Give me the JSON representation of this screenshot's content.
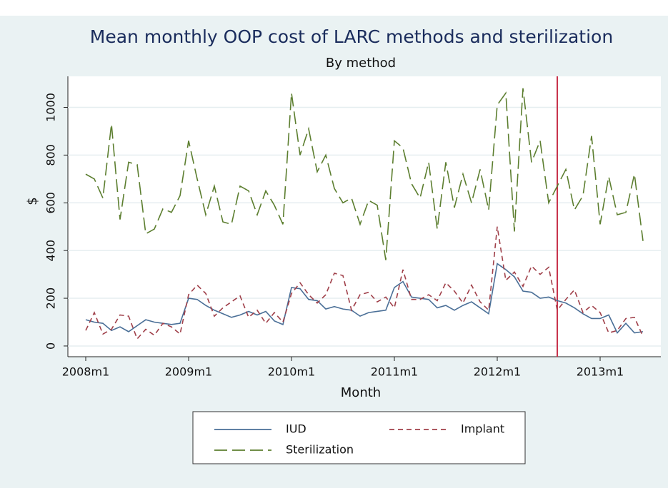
{
  "chart_data": {
    "type": "line",
    "title": "Mean monthly OOP cost of LARC methods and sterilization",
    "subtitle": "By method",
    "x_label": "Month",
    "y_label": "$",
    "categories": [
      "2008m1",
      null,
      null,
      null,
      null,
      null,
      null,
      null,
      null,
      null,
      null,
      null,
      "2009m1",
      null,
      null,
      null,
      null,
      null,
      null,
      null,
      null,
      null,
      null,
      null,
      "2010m1",
      null,
      null,
      null,
      null,
      null,
      null,
      null,
      null,
      null,
      null,
      null,
      "2011m1",
      null,
      null,
      null,
      null,
      null,
      null,
      null,
      null,
      null,
      null,
      null,
      "2012m1",
      null,
      null,
      null,
      null,
      null,
      null,
      null,
      null,
      null,
      null,
      null,
      "2013m1",
      null,
      null,
      null,
      null,
      null
    ],
    "series": [
      {
        "name": "IUD",
        "color": "#4a6f97",
        "dash": "none",
        "values": [
          110,
          100,
          95,
          65,
          80,
          60,
          85,
          110,
          100,
          95,
          90,
          95,
          200,
          195,
          170,
          150,
          135,
          120,
          130,
          145,
          130,
          145,
          105,
          90,
          245,
          240,
          195,
          190,
          155,
          165,
          155,
          150,
          125,
          140,
          145,
          150,
          245,
          270,
          205,
          200,
          195,
          160,
          170,
          150,
          170,
          185,
          160,
          135,
          345,
          320,
          290,
          230,
          225,
          200,
          205,
          190,
          180,
          160,
          135,
          115,
          115,
          130,
          55,
          95,
          55,
          60
        ]
      },
      {
        "name": "Implant",
        "color": "#a0404a",
        "dash": "7 5",
        "values": [
          65,
          140,
          50,
          70,
          130,
          125,
          30,
          70,
          45,
          95,
          80,
          50,
          215,
          255,
          220,
          125,
          160,
          185,
          210,
          120,
          150,
          95,
          140,
          100,
          220,
          265,
          215,
          180,
          215,
          305,
          295,
          150,
          215,
          225,
          185,
          205,
          160,
          320,
          195,
          195,
          215,
          190,
          265,
          230,
          180,
          255,
          185,
          150,
          500,
          275,
          310,
          250,
          335,
          300,
          330,
          150,
          195,
          235,
          140,
          170,
          140,
          55,
          65,
          115,
          120,
          40
        ]
      },
      {
        "name": "Sterilization",
        "color": "#5c7e2f",
        "dash": "18 7",
        "values": [
          720,
          700,
          620,
          930,
          530,
          770,
          760,
          470,
          490,
          575,
          560,
          630,
          860,
          700,
          550,
          670,
          520,
          510,
          670,
          650,
          550,
          650,
          590,
          510,
          1060,
          800,
          910,
          730,
          800,
          660,
          600,
          620,
          510,
          610,
          590,
          360,
          860,
          830,
          680,
          620,
          770,
          490,
          770,
          580,
          720,
          600,
          740,
          570,
          1010,
          1060,
          480,
          1080,
          770,
          860,
          600,
          670,
          740,
          570,
          630,
          880,
          510,
          710,
          550,
          560,
          720,
          440
        ]
      }
    ],
    "ylim": [
      -45,
      1130
    ],
    "yticks": [
      0,
      200,
      400,
      600,
      800,
      1000
    ],
    "grid": true,
    "xline": 55,
    "xline_color": "#c8334c"
  }
}
